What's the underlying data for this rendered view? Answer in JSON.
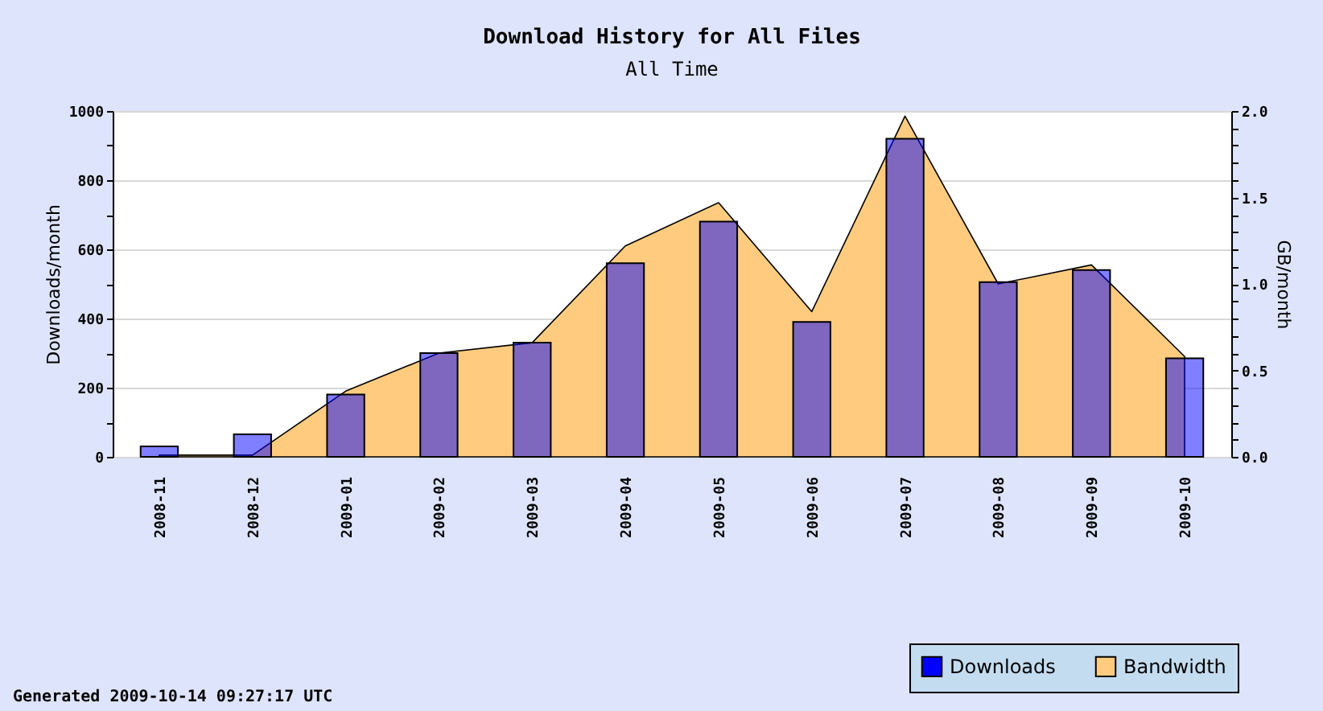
{
  "chart_data": {
    "type": "bar",
    "title": "Download History for All Files",
    "subtitle": "All Time",
    "ylabel": "Downloads/month",
    "y2label": "GB/month",
    "categories": [
      "2008-11",
      "2008-12",
      "2009-01",
      "2009-02",
      "2009-03",
      "2009-04",
      "2009-05",
      "2009-06",
      "2009-07",
      "2009-08",
      "2009-09",
      "2009-10"
    ],
    "series": [
      {
        "name": "Downloads",
        "color": "#0000ff",
        "values": [
          30,
          65,
          180,
          300,
          330,
          560,
          680,
          390,
          920,
          505,
          540,
          285
        ]
      },
      {
        "name": "Bandwidth",
        "type": "area",
        "axis": "y2",
        "color": "#ffcc7f",
        "values": [
          0.01,
          0.01,
          0.38,
          0.6,
          0.66,
          1.22,
          1.47,
          0.84,
          1.97,
          1.0,
          1.11,
          0.58
        ]
      }
    ],
    "ylim": [
      0,
      1000
    ],
    "yticks": [
      0,
      {
        "value": 100,
        "label": null
      },
      200,
      {
        "value": 300,
        "label": null
      },
      400,
      {
        "value": 500,
        "label": null
      },
      600,
      {
        "value": 700,
        "label": null
      },
      800,
      {
        "value": 900,
        "label": null
      },
      1000
    ],
    "y2lim": [
      0,
      2
    ],
    "y2ticks": [
      {
        "value": 0,
        "label": "0.0"
      },
      {
        "value": 0.1,
        "label": null
      },
      {
        "value": 0.2,
        "label": null
      },
      {
        "value": 0.3,
        "label": null
      },
      {
        "value": 0.4,
        "label": null
      },
      {
        "value": 0.5,
        "label": "0.5"
      },
      {
        "value": 0.6,
        "label": null
      },
      {
        "value": 0.7,
        "label": null
      },
      {
        "value": 0.8,
        "label": null
      },
      {
        "value": 0.9,
        "label": null
      },
      {
        "value": 1,
        "label": "1.0"
      },
      {
        "value": 1.1,
        "label": null
      },
      {
        "value": 1.2,
        "label": null
      },
      {
        "value": 1.3,
        "label": null
      },
      {
        "value": 1.4,
        "label": null
      },
      {
        "value": 1.5,
        "label": "1.5"
      },
      {
        "value": 1.6,
        "label": null
      },
      {
        "value": 1.7,
        "label": null
      },
      {
        "value": 1.8,
        "label": null
      },
      {
        "value": 1.9,
        "label": null
      },
      {
        "value": 2,
        "label": "2.0"
      }
    ],
    "grid": "y",
    "legend": "bottom right",
    "annotations": [
      "Generated 2009-10-14 09:27:17 UTC"
    ]
  }
}
